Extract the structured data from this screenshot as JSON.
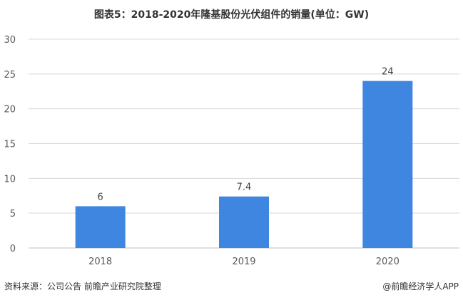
{
  "title": "图表5：2018-2020年隆基股份光伏组件的销量(单位：GW)",
  "footer": {
    "source": "资料来源：公司公告 前瞻产业研究院整理",
    "brand": "@前瞻经济学人APP"
  },
  "colors": {
    "bar": "#3f86e0",
    "grid": "#d9d9d9",
    "axis": "#bfbfbf"
  },
  "chart_data": {
    "type": "bar",
    "categories": [
      "2018",
      "2019",
      "2020"
    ],
    "values": [
      6,
      7.4,
      24
    ],
    "data_labels": [
      "6",
      "7.4",
      "24"
    ],
    "ylim": [
      0,
      30
    ],
    "yticks": [
      0,
      5,
      10,
      15,
      20,
      25,
      30
    ],
    "grid": true,
    "legend": "none"
  }
}
